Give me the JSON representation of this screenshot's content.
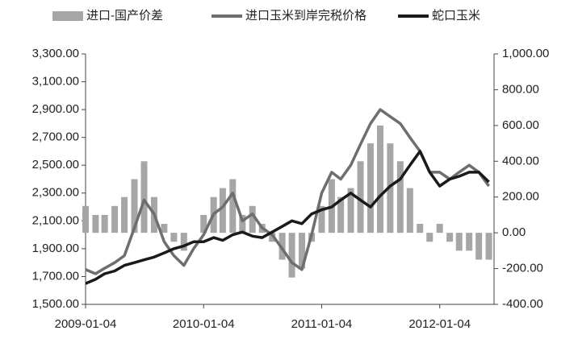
{
  "chart_data": {
    "type": "bar-line",
    "x": [
      "2009-01-04",
      "2009-02-04",
      "2009-03-04",
      "2009-04-04",
      "2009-05-04",
      "2009-06-04",
      "2009-07-04",
      "2009-08-04",
      "2009-09-04",
      "2009-10-04",
      "2009-11-04",
      "2009-12-04",
      "2010-01-04",
      "2010-02-04",
      "2010-03-04",
      "2010-04-04",
      "2010-05-04",
      "2010-06-04",
      "2010-07-04",
      "2010-08-04",
      "2010-09-04",
      "2010-10-04",
      "2010-11-04",
      "2010-12-04",
      "2011-01-04",
      "2011-02-04",
      "2011-03-04",
      "2011-04-04",
      "2011-05-04",
      "2011-06-04",
      "2011-07-04",
      "2011-08-04",
      "2011-09-04",
      "2011-10-04",
      "2011-11-04",
      "2011-12-04",
      "2012-01-04",
      "2012-02-04",
      "2012-03-04",
      "2012-04-04",
      "2012-05-04",
      "2012-06-04"
    ],
    "series": [
      {
        "name": "进口-国产价差",
        "type": "bar",
        "axis": "y2",
        "color": "#a6a6a6",
        "values": [
          150,
          100,
          100,
          150,
          200,
          300,
          400,
          200,
          50,
          -50,
          -100,
          0,
          100,
          200,
          250,
          300,
          100,
          150,
          50,
          -50,
          -150,
          -250,
          -200,
          -50,
          150,
          300,
          200,
          250,
          400,
          500,
          600,
          500,
          400,
          250,
          50,
          -50,
          50,
          -50,
          -100,
          -100,
          -150,
          -150
        ]
      },
      {
        "name": "进口玉米到岸完税价格",
        "type": "line",
        "axis": "y",
        "color": "#6e6e6e",
        "values": [
          1750,
          1720,
          1760,
          1800,
          1850,
          2050,
          2250,
          2150,
          1950,
          1850,
          1780,
          1900,
          2000,
          2150,
          2200,
          2300,
          2100,
          2150,
          2050,
          2000,
          1900,
          1800,
          1750,
          2000,
          2300,
          2450,
          2400,
          2500,
          2650,
          2800,
          2900,
          2850,
          2800,
          2700,
          2600,
          2450,
          2450,
          2400,
          2450,
          2500,
          2450,
          2350
        ]
      },
      {
        "name": "蛇口玉米",
        "type": "line",
        "axis": "y",
        "color": "#1a1a1a",
        "values": [
          1650,
          1680,
          1720,
          1740,
          1780,
          1800,
          1820,
          1840,
          1870,
          1900,
          1920,
          1950,
          1950,
          1980,
          1960,
          2000,
          2020,
          1990,
          1980,
          2020,
          2060,
          2100,
          2080,
          2150,
          2180,
          2200,
          2250,
          2300,
          2250,
          2200,
          2280,
          2350,
          2400,
          2500,
          2600,
          2450,
          2350,
          2400,
          2420,
          2450,
          2450,
          2380
        ]
      }
    ],
    "xlim": [
      "2009-01-04",
      "2012-06-20"
    ],
    "xticks": [
      "2009-01-04",
      "2010-01-04",
      "2011-01-04",
      "2012-01-04"
    ],
    "ylim": [
      1500,
      3300
    ],
    "yticks": [
      {
        "value": 1500,
        "label": "1,500.00"
      },
      {
        "value": 1700,
        "label": "1,700.00"
      },
      {
        "value": 1900,
        "label": "1,900.00"
      },
      {
        "value": 2100,
        "label": "2,100.00"
      },
      {
        "value": 2300,
        "label": "2,300.00"
      },
      {
        "value": 2500,
        "label": "2,500.00"
      },
      {
        "value": 2700,
        "label": "2,700.00"
      },
      {
        "value": 2900,
        "label": "2,900.00"
      },
      {
        "value": 3100,
        "label": "3,100.00"
      },
      {
        "value": 3300,
        "label": "3,300.00"
      }
    ],
    "y2lim": [
      -400,
      1000
    ],
    "y2ticks": [
      {
        "value": -400,
        "label": "-400.00"
      },
      {
        "value": -200,
        "label": "-200.00"
      },
      {
        "value": 0,
        "label": "0.00"
      },
      {
        "value": 200,
        "label": "200.00"
      },
      {
        "value": 400,
        "label": "400.00"
      },
      {
        "value": 600,
        "label": "600.00"
      },
      {
        "value": 800,
        "label": "800.00"
      },
      {
        "value": 1000,
        "label": "1,000.00"
      }
    ]
  }
}
